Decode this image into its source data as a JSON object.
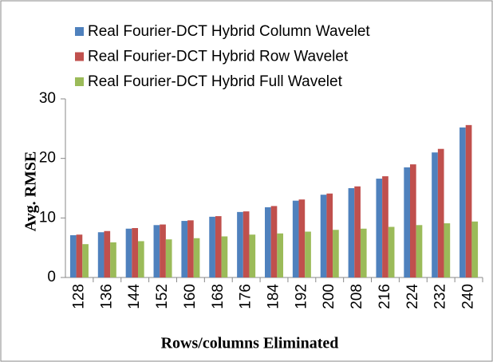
{
  "chart_data": {
    "type": "bar",
    "x_label": "Rows/columns Eliminated",
    "y_label": "Avg. RMSE",
    "categories": [
      "128",
      "136",
      "144",
      "152",
      "160",
      "168",
      "176",
      "184",
      "192",
      "200",
      "208",
      "216",
      "224",
      "232",
      "240"
    ],
    "series": [
      {
        "name": "Real Fourier-DCT Hybrid Column Wavelet",
        "color": "#4f81bd",
        "values": [
          7.1,
          7.6,
          8.2,
          8.8,
          9.5,
          10.2,
          11.0,
          11.8,
          12.9,
          13.9,
          15.0,
          16.6,
          18.5,
          21.0,
          25.2
        ]
      },
      {
        "name": "Real Fourier-DCT Hybrid Row Wavelet",
        "color": "#c0504d",
        "values": [
          7.2,
          7.8,
          8.3,
          8.9,
          9.6,
          10.3,
          11.1,
          12.0,
          13.1,
          14.1,
          15.3,
          17.0,
          19.0,
          21.6,
          25.6
        ]
      },
      {
        "name": "Real Fourier-DCT Hybrid Full Wavelet",
        "color": "#9bbb59",
        "values": [
          5.6,
          5.9,
          6.1,
          6.4,
          6.6,
          6.9,
          7.2,
          7.4,
          7.7,
          8.0,
          8.2,
          8.5,
          8.8,
          9.1,
          9.4
        ]
      }
    ],
    "ylim": [
      0,
      30
    ],
    "yticks": [
      0,
      10,
      20,
      30
    ],
    "grid": false,
    "legend": "top"
  }
}
